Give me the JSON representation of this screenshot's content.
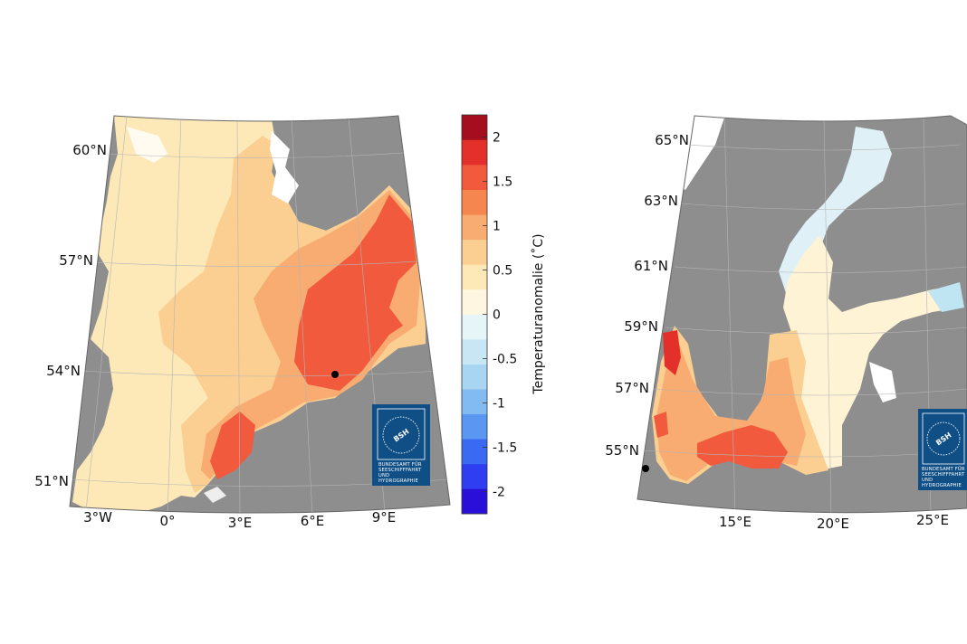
{
  "north_sea": {
    "lat_labels": [
      "60°N",
      "57°N",
      "54°N",
      "51°N"
    ],
    "lon_labels": [
      "3°W",
      "0°",
      "3°E",
      "6°E",
      "9°E"
    ],
    "marker": "station"
  },
  "baltic_sea": {
    "lat_labels": [
      "65°N",
      "63°N",
      "61°N",
      "59°N",
      "57°N",
      "55°N"
    ],
    "lon_labels": [
      "15°E",
      "20°E",
      "25°E"
    ],
    "marker": "station"
  },
  "colorbar": {
    "title": "Temperaturanomalie (˚C)",
    "tick_labels": [
      "2",
      "1.5",
      "1",
      "0.5",
      "0",
      "-0.5",
      "-1",
      "-1.5",
      "-2"
    ],
    "colors": [
      "#2a0fd8",
      "#2f3ef0",
      "#3a6af2",
      "#5a96f2",
      "#82baf2",
      "#a8d5f2",
      "#c8e6f4",
      "#e6f5f7",
      "#fff6e2",
      "#fde8b8",
      "#fbcf92",
      "#f8ac72",
      "#f6864f",
      "#f15a3c",
      "#e4302b",
      "#a50e1e"
    ]
  },
  "logo": {
    "short": "BSH",
    "line1": "BUNDESAMT FÜR",
    "line2": "SEESCHIFFFAHRT",
    "line3": "UND",
    "line4": "HYDROGRAPHIE"
  }
}
